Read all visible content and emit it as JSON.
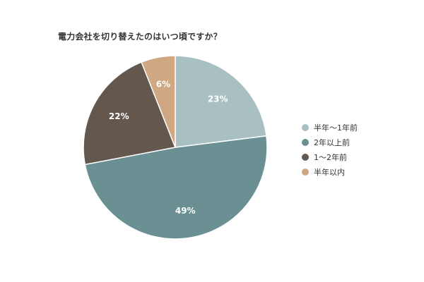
{
  "chart_data": {
    "type": "pie",
    "title": "電力会社を切り替えたのはいつ頃ですか？",
    "slices": [
      {
        "name": "半年〜1年前",
        "value": 23,
        "label": "23%",
        "color": "#a8c0c2"
      },
      {
        "name": "2年以上前",
        "value": 49,
        "label": "49%",
        "color": "#6b9094"
      },
      {
        "name": "1〜2年前",
        "value": 22,
        "label": "22%",
        "color": "#63574e"
      },
      {
        "name": "半年以内",
        "value": 6,
        "label": "6%",
        "color": "#cfa782"
      }
    ],
    "start_angle_deg": 0,
    "direction": "clockwise",
    "legend_position": "right"
  }
}
